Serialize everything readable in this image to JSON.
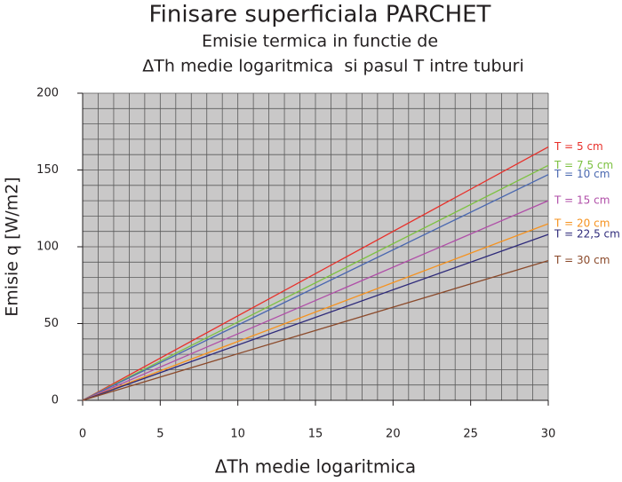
{
  "chart_data": {
    "type": "line",
    "title": "Finisare superficiala PARCHET",
    "subtitle": [
      "Emisie termica in functie de",
      "ΔTh medie logaritmica  si pasul T intre tuburi"
    ],
    "x_label": "ΔTh medie logaritmica",
    "y_label": "Emisie q [W/m2]",
    "x": [
      0,
      30
    ],
    "series": [
      {
        "name": "T = 5 cm",
        "color": "#e8302a",
        "values": [
          0,
          165
        ]
      },
      {
        "name": "T = 7,5 cm",
        "color": "#7dc142",
        "values": [
          0,
          153
        ]
      },
      {
        "name": "T = 10 cm",
        "color": "#4a68b0",
        "values": [
          0,
          147
        ]
      },
      {
        "name": "T = 15 cm",
        "color": "#b04fa8",
        "values": [
          0,
          130
        ]
      },
      {
        "name": "T = 20 cm",
        "color": "#f6921e",
        "values": [
          0,
          115
        ]
      },
      {
        "name": "T = 22,5 cm",
        "color": "#2e2a7a",
        "values": [
          0,
          108
        ]
      },
      {
        "name": "T = 30 cm",
        "color": "#8b4a2b",
        "values": [
          0,
          91
        ]
      }
    ],
    "xlim": [
      0,
      30
    ],
    "ylim": [
      0,
      200
    ],
    "xticks": [
      0,
      5,
      10,
      15,
      20,
      25,
      30
    ],
    "yticks": [
      0,
      50,
      100,
      150,
      200
    ],
    "grid_xticks": [
      0,
      1,
      2,
      3,
      4,
      5,
      6,
      7,
      8,
      9,
      10,
      11,
      12,
      13,
      14,
      15,
      16,
      17,
      18,
      19,
      20,
      21,
      22,
      23,
      24,
      25,
      26,
      27,
      28,
      29,
      30
    ],
    "grid_yticks": [
      0,
      10,
      20,
      30,
      40,
      50,
      60,
      70,
      80,
      90,
      100,
      110,
      120,
      130,
      140,
      150,
      160,
      170,
      180,
      190,
      200
    ],
    "grid": true
  }
}
